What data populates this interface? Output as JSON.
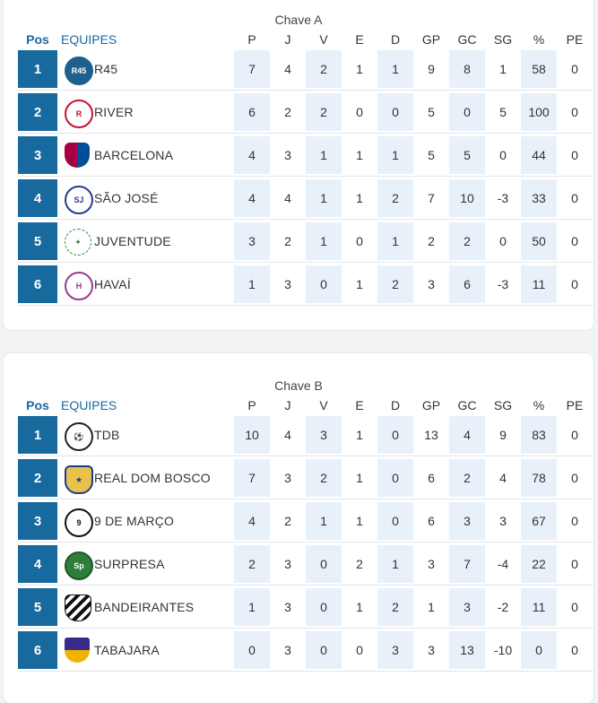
{
  "columns": {
    "pos": "Pos",
    "team": "EQUIPES",
    "stats": [
      "P",
      "J",
      "V",
      "E",
      "D",
      "GP",
      "GC",
      "SG",
      "%",
      "PE"
    ]
  },
  "groups": [
    {
      "title": "Chave A",
      "rows": [
        {
          "pos": "1",
          "team": "R45",
          "logo": "r45-logo",
          "stats": [
            "7",
            "4",
            "2",
            "1",
            "1",
            "9",
            "8",
            "1",
            "58",
            "0"
          ]
        },
        {
          "pos": "2",
          "team": "RIVER",
          "logo": "river-logo",
          "stats": [
            "6",
            "2",
            "2",
            "0",
            "0",
            "5",
            "0",
            "5",
            "100",
            "0"
          ]
        },
        {
          "pos": "3",
          "team": "BARCELONA",
          "logo": "barcelona-logo",
          "stats": [
            "4",
            "3",
            "1",
            "1",
            "1",
            "5",
            "5",
            "0",
            "44",
            "0"
          ]
        },
        {
          "pos": "4",
          "team": "SÃO JOSÉ",
          "logo": "sao-jose-logo",
          "stats": [
            "4",
            "4",
            "1",
            "1",
            "2",
            "7",
            "10",
            "-3",
            "33",
            "0"
          ]
        },
        {
          "pos": "5",
          "team": "JUVENTUDE",
          "logo": "juventude-logo",
          "stats": [
            "3",
            "2",
            "1",
            "0",
            "1",
            "2",
            "2",
            "0",
            "50",
            "0"
          ]
        },
        {
          "pos": "6",
          "team": "HAVAÍ",
          "logo": "havai-logo",
          "stats": [
            "1",
            "3",
            "0",
            "1",
            "2",
            "3",
            "6",
            "-3",
            "11",
            "0"
          ]
        }
      ]
    },
    {
      "title": "Chave B",
      "rows": [
        {
          "pos": "1",
          "team": "TDB",
          "logo": "tdb-logo",
          "stats": [
            "10",
            "4",
            "3",
            "1",
            "0",
            "13",
            "4",
            "9",
            "83",
            "0"
          ]
        },
        {
          "pos": "2",
          "team": "REAL DOM BOSCO",
          "logo": "real-dom-bosco-logo",
          "stats": [
            "7",
            "3",
            "2",
            "1",
            "0",
            "6",
            "2",
            "4",
            "78",
            "0"
          ]
        },
        {
          "pos": "3",
          "team": "9 DE MARÇO",
          "logo": "9-de-marco-logo",
          "stats": [
            "4",
            "2",
            "1",
            "1",
            "0",
            "6",
            "3",
            "3",
            "67",
            "0"
          ]
        },
        {
          "pos": "4",
          "team": "SURPRESA",
          "logo": "surpresa-logo",
          "stats": [
            "2",
            "3",
            "0",
            "2",
            "1",
            "3",
            "7",
            "-4",
            "22",
            "0"
          ]
        },
        {
          "pos": "5",
          "team": "BANDEIRANTES",
          "logo": "bandeirantes-logo",
          "stats": [
            "1",
            "3",
            "0",
            "1",
            "2",
            "1",
            "3",
            "-2",
            "11",
            "0"
          ]
        },
        {
          "pos": "6",
          "team": "TABAJARA",
          "logo": "tabajara-logo",
          "stats": [
            "0",
            "3",
            "0",
            "0",
            "3",
            "3",
            "13",
            "-10",
            "0",
            "0"
          ]
        }
      ]
    }
  ],
  "colors": {
    "accent": "#17699e",
    "header_text": "#1a67a3",
    "shade": "#e8f1f9"
  }
}
